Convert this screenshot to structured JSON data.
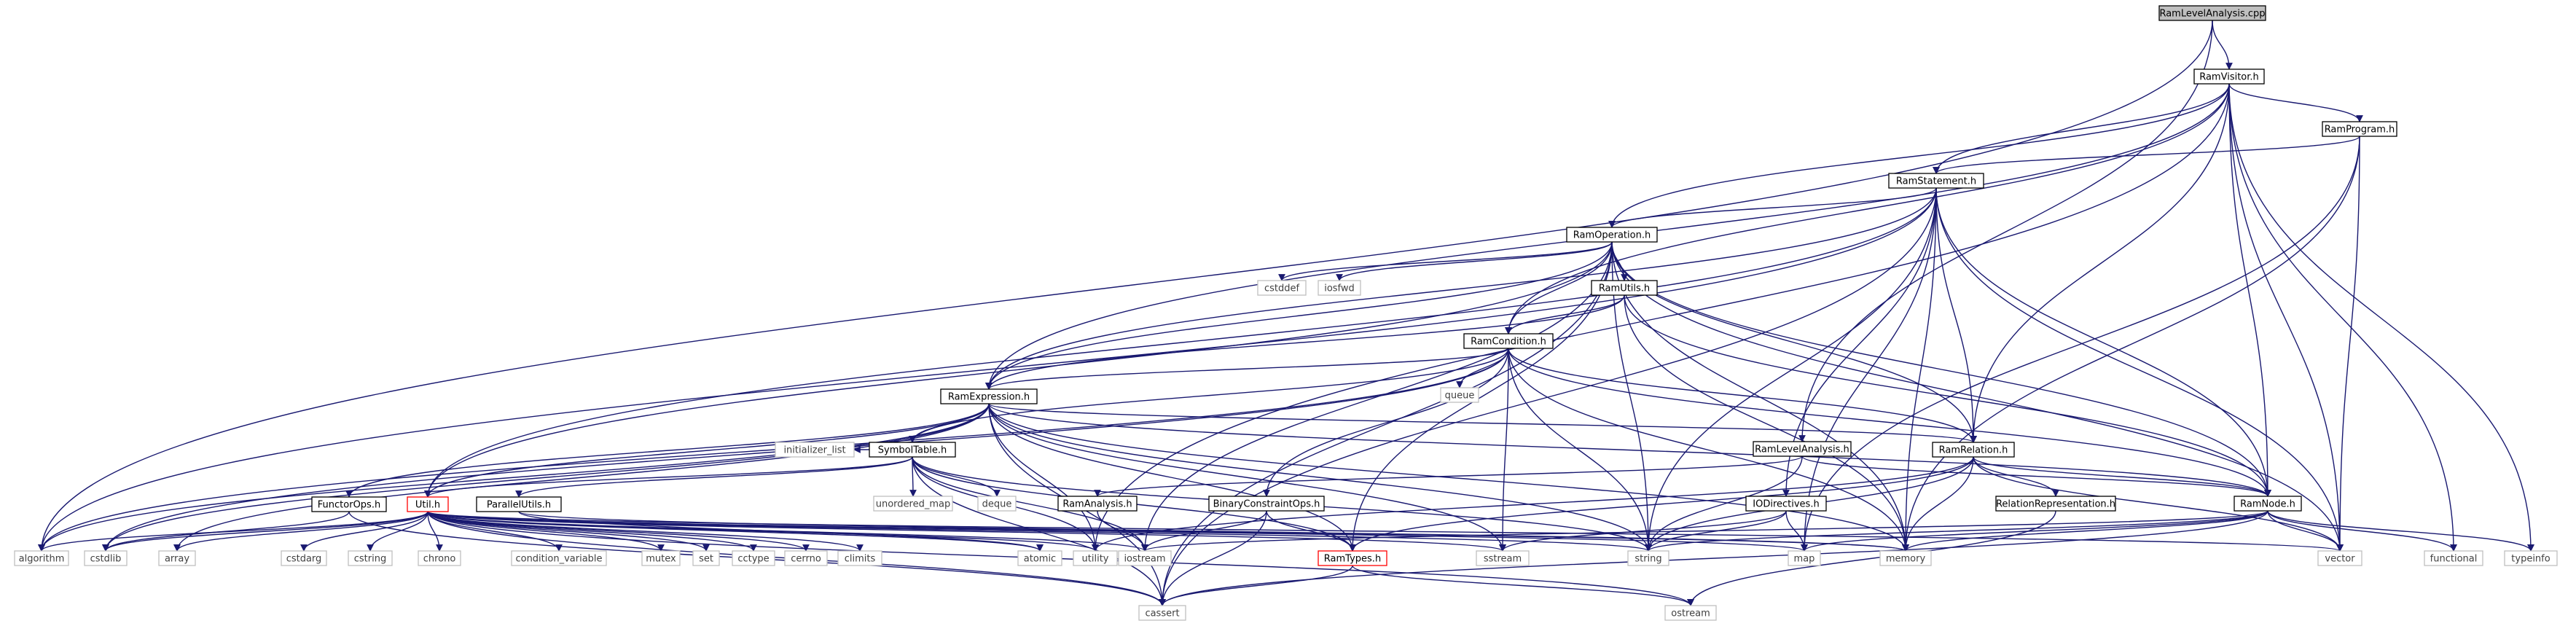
{
  "colors": {
    "edge": "#191970",
    "node_border": "#000000",
    "external_border": "#bfbfbf",
    "external_text": "#404040",
    "root_fill": "#bfbfbf",
    "red_border": "#ff0000",
    "node_fill": "#ffffff"
  },
  "nodes": [
    {
      "id": "RamLevelAnalysis.cpp",
      "label": "RamLevelAnalysis.cpp",
      "kind": "root"
    },
    {
      "id": "RamVisitor.h",
      "label": "RamVisitor.h",
      "kind": "header"
    },
    {
      "id": "RamProgram.h",
      "label": "RamProgram.h",
      "kind": "header"
    },
    {
      "id": "RamStatement.h",
      "label": "RamStatement.h",
      "kind": "header"
    },
    {
      "id": "RamOperation.h",
      "label": "RamOperation.h",
      "kind": "header"
    },
    {
      "id": "RamUtils.h",
      "label": "RamUtils.h",
      "kind": "header"
    },
    {
      "id": "RamCondition.h",
      "label": "RamCondition.h",
      "kind": "header"
    },
    {
      "id": "RamExpression.h",
      "label": "RamExpression.h",
      "kind": "header"
    },
    {
      "id": "SymbolTable.h",
      "label": "SymbolTable.h",
      "kind": "header"
    },
    {
      "id": "RamRelation.h",
      "label": "RamRelation.h",
      "kind": "header"
    },
    {
      "id": "RamLevelAnalysis.h",
      "label": "RamLevelAnalysis.h",
      "kind": "header"
    },
    {
      "id": "RamAnalysis.h",
      "label": "RamAnalysis.h",
      "kind": "header"
    },
    {
      "id": "BinaryConstraintOps.h",
      "label": "BinaryConstraintOps.h",
      "kind": "header"
    },
    {
      "id": "IODirectives.h",
      "label": "IODirectives.h",
      "kind": "header"
    },
    {
      "id": "RelationRepresentation.h",
      "label": "RelationRepresentation.h",
      "kind": "header"
    },
    {
      "id": "RamNode.h",
      "label": "RamNode.h",
      "kind": "header"
    },
    {
      "id": "FunctorOps.h",
      "label": "FunctorOps.h",
      "kind": "header"
    },
    {
      "id": "Util.h",
      "label": "Util.h",
      "kind": "red"
    },
    {
      "id": "ParallelUtils.h",
      "label": "ParallelUtils.h",
      "kind": "header"
    },
    {
      "id": "RamTypes.h",
      "label": "RamTypes.h",
      "kind": "red"
    },
    {
      "id": "cstddef",
      "label": "cstddef",
      "kind": "external"
    },
    {
      "id": "iosfwd",
      "label": "iosfwd",
      "kind": "external"
    },
    {
      "id": "queue",
      "label": "queue",
      "kind": "external"
    },
    {
      "id": "initializer_list",
      "label": "initializer_list",
      "kind": "external"
    },
    {
      "id": "unordered_map",
      "label": "unordered_map",
      "kind": "external"
    },
    {
      "id": "deque",
      "label": "deque",
      "kind": "external"
    },
    {
      "id": "algorithm",
      "label": "algorithm",
      "kind": "external"
    },
    {
      "id": "cstdlib",
      "label": "cstdlib",
      "kind": "external"
    },
    {
      "id": "array",
      "label": "array",
      "kind": "external"
    },
    {
      "id": "cstdarg",
      "label": "cstdarg",
      "kind": "external"
    },
    {
      "id": "cstring",
      "label": "cstring",
      "kind": "external"
    },
    {
      "id": "chrono",
      "label": "chrono",
      "kind": "external"
    },
    {
      "id": "condition_variable",
      "label": "condition_variable",
      "kind": "external"
    },
    {
      "id": "mutex",
      "label": "mutex",
      "kind": "external"
    },
    {
      "id": "set",
      "label": "set",
      "kind": "external"
    },
    {
      "id": "cctype",
      "label": "cctype",
      "kind": "external"
    },
    {
      "id": "cerrno",
      "label": "cerrno",
      "kind": "external"
    },
    {
      "id": "climits",
      "label": "climits",
      "kind": "external"
    },
    {
      "id": "atomic",
      "label": "atomic",
      "kind": "external"
    },
    {
      "id": "utility",
      "label": "utility",
      "kind": "external"
    },
    {
      "id": "iostream",
      "label": "iostream",
      "kind": "external"
    },
    {
      "id": "sstream",
      "label": "sstream",
      "kind": "external"
    },
    {
      "id": "string",
      "label": "string",
      "kind": "external"
    },
    {
      "id": "map",
      "label": "map",
      "kind": "external"
    },
    {
      "id": "memory",
      "label": "memory",
      "kind": "external"
    },
    {
      "id": "vector",
      "label": "vector",
      "kind": "external"
    },
    {
      "id": "functional",
      "label": "functional",
      "kind": "external"
    },
    {
      "id": "typeinfo",
      "label": "typeinfo",
      "kind": "external"
    },
    {
      "id": "cassert",
      "label": "cassert",
      "kind": "external"
    },
    {
      "id": "ostream",
      "label": "ostream",
      "kind": "external"
    }
  ],
  "edges": [
    [
      "RamLevelAnalysis.cpp",
      "RamVisitor.h"
    ],
    [
      "RamLevelAnalysis.cpp",
      "RamLevelAnalysis.h"
    ],
    [
      "RamLevelAnalysis.cpp",
      "algorithm"
    ],
    [
      "RamVisitor.h",
      "RamProgram.h"
    ],
    [
      "RamVisitor.h",
      "RamStatement.h"
    ],
    [
      "RamVisitor.h",
      "RamOperation.h"
    ],
    [
      "RamVisitor.h",
      "RamCondition.h"
    ],
    [
      "RamVisitor.h",
      "RamExpression.h"
    ],
    [
      "RamVisitor.h",
      "RamRelation.h"
    ],
    [
      "RamVisitor.h",
      "RamNode.h"
    ],
    [
      "RamVisitor.h",
      "vector"
    ],
    [
      "RamVisitor.h",
      "functional"
    ],
    [
      "RamVisitor.h",
      "typeinfo"
    ],
    [
      "RamVisitor.h",
      "utility"
    ],
    [
      "RamProgram.h",
      "RamStatement.h"
    ],
    [
      "RamProgram.h",
      "map"
    ],
    [
      "RamProgram.h",
      "memory"
    ],
    [
      "RamProgram.h",
      "vector"
    ],
    [
      "RamStatement.h",
      "RamOperation.h"
    ],
    [
      "RamStatement.h",
      "RamRelation.h"
    ],
    [
      "RamStatement.h",
      "RamExpression.h"
    ],
    [
      "RamStatement.h",
      "RamNode.h"
    ],
    [
      "RamStatement.h",
      "IODirectives.h"
    ],
    [
      "RamStatement.h",
      "Util.h"
    ],
    [
      "RamStatement.h",
      "algorithm"
    ],
    [
      "RamStatement.h",
      "string"
    ],
    [
      "RamStatement.h",
      "memory"
    ],
    [
      "RamStatement.h",
      "vector"
    ],
    [
      "RamStatement.h",
      "cassert"
    ],
    [
      "RamStatement.h",
      "map"
    ],
    [
      "RamOperation.h",
      "RamUtils.h"
    ],
    [
      "RamOperation.h",
      "RamCondition.h"
    ],
    [
      "RamOperation.h",
      "RamExpression.h"
    ],
    [
      "RamOperation.h",
      "RamRelation.h"
    ],
    [
      "RamOperation.h",
      "RamNode.h"
    ],
    [
      "RamOperation.h",
      "RamTypes.h"
    ],
    [
      "RamOperation.h",
      "Util.h"
    ],
    [
      "RamOperation.h",
      "cstddef"
    ],
    [
      "RamOperation.h",
      "iosfwd"
    ],
    [
      "RamOperation.h",
      "string"
    ],
    [
      "RamOperation.h",
      "memory"
    ],
    [
      "RamOperation.h",
      "vector"
    ],
    [
      "RamOperation.h",
      "cassert"
    ],
    [
      "RamOperation.h",
      "iostream"
    ],
    [
      "RamUtils.h",
      "RamCondition.h"
    ],
    [
      "RamUtils.h",
      "RamExpression.h"
    ],
    [
      "RamUtils.h",
      "RamNode.h"
    ],
    [
      "RamUtils.h",
      "memory"
    ],
    [
      "RamCondition.h",
      "RamExpression.h"
    ],
    [
      "RamCondition.h",
      "RamRelation.h"
    ],
    [
      "RamCondition.h",
      "RamNode.h"
    ],
    [
      "RamCondition.h",
      "SymbolTable.h"
    ],
    [
      "RamCondition.h",
      "BinaryConstraintOps.h"
    ],
    [
      "RamCondition.h",
      "queue"
    ],
    [
      "RamCondition.h",
      "algorithm"
    ],
    [
      "RamCondition.h",
      "string"
    ],
    [
      "RamCondition.h",
      "sstream"
    ],
    [
      "RamCondition.h",
      "memory"
    ],
    [
      "RamCondition.h",
      "cstdlib"
    ],
    [
      "RamExpression.h",
      "SymbolTable.h"
    ],
    [
      "RamExpression.h",
      "RamRelation.h"
    ],
    [
      "RamExpression.h",
      "RamNode.h"
    ],
    [
      "RamExpression.h",
      "FunctorOps.h"
    ],
    [
      "RamExpression.h",
      "Util.h"
    ],
    [
      "RamExpression.h",
      "RamTypes.h"
    ],
    [
      "RamExpression.h",
      "algorithm"
    ],
    [
      "RamExpression.h",
      "cstdlib"
    ],
    [
      "RamExpression.h",
      "array"
    ],
    [
      "RamExpression.h",
      "string"
    ],
    [
      "RamExpression.h",
      "sstream"
    ],
    [
      "RamExpression.h",
      "utility"
    ],
    [
      "RamExpression.h",
      "memory"
    ],
    [
      "RamExpression.h",
      "cassert"
    ],
    [
      "SymbolTable.h",
      "ParallelUtils.h"
    ],
    [
      "SymbolTable.h",
      "RamTypes.h"
    ],
    [
      "SymbolTable.h",
      "Util.h"
    ],
    [
      "SymbolTable.h",
      "initializer_list"
    ],
    [
      "SymbolTable.h",
      "unordered_map"
    ],
    [
      "SymbolTable.h",
      "deque"
    ],
    [
      "SymbolTable.h",
      "iostream"
    ],
    [
      "SymbolTable.h",
      "string"
    ],
    [
      "SymbolTable.h",
      "utility"
    ],
    [
      "SymbolTable.h",
      "cassert"
    ],
    [
      "RamRelation.h",
      "RamNode.h"
    ],
    [
      "RamRelation.h",
      "RelationRepresentation.h"
    ],
    [
      "RamRelation.h",
      "RamTypes.h"
    ],
    [
      "RamRelation.h",
      "string"
    ],
    [
      "RamRelation.h",
      "vector"
    ],
    [
      "RamRelation.h",
      "utility"
    ],
    [
      "RamRelation.h",
      "memory"
    ],
    [
      "RamLevelAnalysis.h",
      "RamAnalysis.h"
    ],
    [
      "RamLevelAnalysis.h",
      "RamNode.h"
    ],
    [
      "RamLevelAnalysis.h",
      "string"
    ],
    [
      "RamAnalysis.h",
      "iostream"
    ],
    [
      "BinaryConstraintOps.h",
      "RamTypes.h"
    ],
    [
      "BinaryConstraintOps.h",
      "iostream"
    ],
    [
      "BinaryConstraintOps.h",
      "cassert"
    ],
    [
      "IODirectives.h",
      "map"
    ],
    [
      "IODirectives.h",
      "string"
    ],
    [
      "IODirectives.h",
      "sstream"
    ],
    [
      "RelationRepresentation.h",
      "ostream"
    ],
    [
      "RamNode.h",
      "vector"
    ],
    [
      "RamNode.h",
      "functional"
    ],
    [
      "RamNode.h",
      "typeinfo"
    ],
    [
      "RamNode.h",
      "memory"
    ],
    [
      "RamNode.h",
      "map"
    ],
    [
      "RamNode.h",
      "string"
    ],
    [
      "RamNode.h",
      "iostream"
    ],
    [
      "RamNode.h",
      "cassert"
    ],
    [
      "FunctorOps.h",
      "cassert"
    ],
    [
      "FunctorOps.h",
      "cstdlib"
    ],
    [
      "Util.h",
      "algorithm"
    ],
    [
      "Util.h",
      "cstdlib"
    ],
    [
      "Util.h",
      "array"
    ],
    [
      "Util.h",
      "cstdarg"
    ],
    [
      "Util.h",
      "cstring"
    ],
    [
      "Util.h",
      "chrono"
    ],
    [
      "Util.h",
      "condition_variable"
    ],
    [
      "Util.h",
      "mutex"
    ],
    [
      "Util.h",
      "set"
    ],
    [
      "Util.h",
      "cctype"
    ],
    [
      "Util.h",
      "cerrno"
    ],
    [
      "Util.h",
      "climits"
    ],
    [
      "Util.h",
      "atomic"
    ],
    [
      "Util.h",
      "utility"
    ],
    [
      "Util.h",
      "iostream"
    ],
    [
      "Util.h",
      "sstream"
    ],
    [
      "Util.h",
      "string"
    ],
    [
      "Util.h",
      "map"
    ],
    [
      "Util.h",
      "memory"
    ],
    [
      "Util.h",
      "vector"
    ],
    [
      "Util.h",
      "cassert"
    ],
    [
      "Util.h",
      "ostream"
    ],
    [
      "ParallelUtils.h",
      "atomic"
    ],
    [
      "ParallelUtils.h",
      "memory"
    ],
    [
      "RamTypes.h",
      "cassert"
    ],
    [
      "RamTypes.h",
      "ostream"
    ]
  ]
}
